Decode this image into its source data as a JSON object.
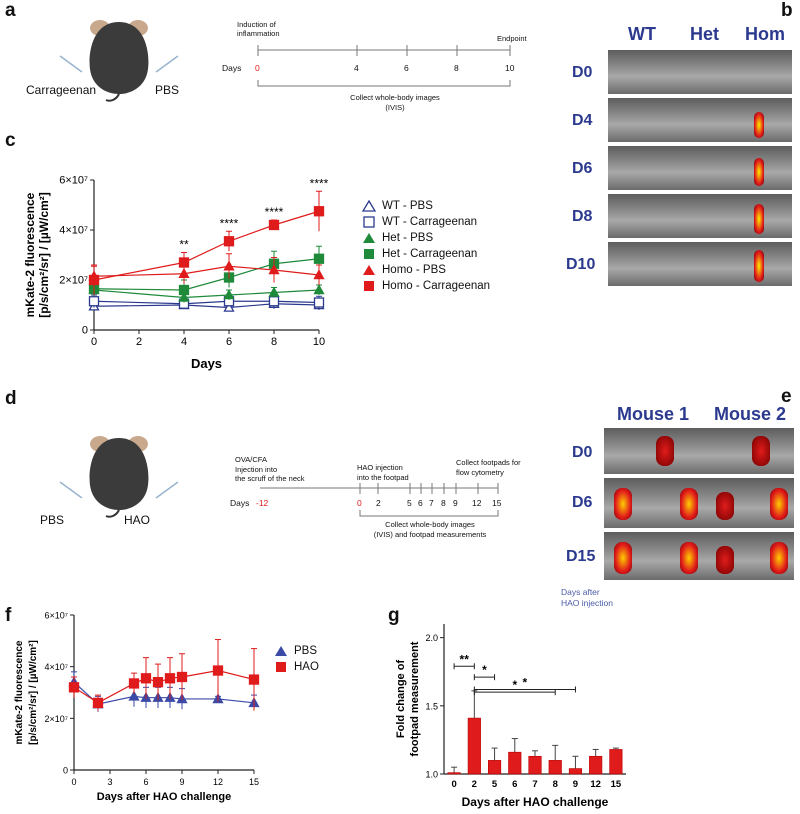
{
  "panels": {
    "a": {
      "label": "a",
      "left_label": "Carrageenan",
      "right_label": "PBS",
      "top_note": "Induction of inflammation",
      "end_note": "Endpoint",
      "days_label": "Days",
      "ticks": [
        "0",
        "4",
        "6",
        "8",
        "10"
      ],
      "bottom_note": "Collect whole-body images",
      "bottom_note2": "(IVIS)"
    },
    "b": {
      "label": "b",
      "columns": [
        "WT",
        "Het",
        "Hom"
      ],
      "rows": [
        "D0",
        "D4",
        "D6",
        "D8",
        "D10"
      ]
    },
    "c": {
      "label": "c"
    },
    "d": {
      "label": "d",
      "left_label": "PBS",
      "right_label": "HAO",
      "note1": "OVA/CFA",
      "note2": "Injection into",
      "note3": "the scruff of the neck",
      "note4": "HAO injection",
      "note5": "into the footpad",
      "note6": "Collect footpads for",
      "note7": "flow cytometry",
      "days_label": "Days",
      "ticks": [
        "-12",
        "0",
        "2",
        "5",
        "6",
        "7",
        "8",
        "9",
        "12",
        "15"
      ],
      "bottom_note": "Collect whole-body images",
      "bottom_note2": "(IVIS) and footpad measurements"
    },
    "e": {
      "label": "e",
      "columns": [
        "Mouse 1",
        "Mouse 2"
      ],
      "rows": [
        "D0",
        "D6",
        "D15"
      ],
      "caption1": "Days after",
      "caption2": "HAO injection"
    },
    "f": {
      "label": "f"
    },
    "g": {
      "label": "g"
    }
  },
  "colors": {
    "wt": "#2b3a8e",
    "het": "#1e8a3a",
    "homo": "#e01b1b",
    "pbs": "#3a4aa6",
    "hao": "#e01b1b",
    "timeline_red": "#e01b1b",
    "bar": "#e01b1b"
  },
  "chart_data": [
    {
      "id": "c",
      "type": "line",
      "title": "",
      "xlabel": "Days",
      "ylabel": "mKate-2 fluorescence",
      "ylabel2": "[p/s/cm²/sr] / [µW/cm²]",
      "x": [
        0,
        4,
        6,
        8,
        10
      ],
      "xlim": [
        0,
        10
      ],
      "xticks": [
        "0",
        "2",
        "4",
        "6",
        "8",
        "10"
      ],
      "ylim": [
        0,
        60000000
      ],
      "yticks": [
        "0",
        "2×10⁷",
        "4×10⁷",
        "6×10⁷"
      ],
      "series": [
        {
          "name": "WT - PBS",
          "values": [
            9500000,
            10000000,
            9000000,
            10500000,
            10000000
          ],
          "err": [
            1500000,
            1500000,
            1500000,
            2000000,
            2000000
          ],
          "marker": "tri-open",
          "color": "#2b3a8e"
        },
        {
          "name": "WT - Carrageenan",
          "values": [
            11500000,
            10500000,
            11500000,
            11500000,
            11000000
          ],
          "err": [
            2500000,
            1500000,
            2000000,
            3000000,
            2500000
          ],
          "marker": "sq-open",
          "color": "#2b3a8e"
        },
        {
          "name": "Het - PBS",
          "values": [
            16000000,
            13000000,
            14000000,
            15000000,
            16000000
          ],
          "err": [
            2000000,
            2000000,
            2000000,
            2000000,
            2000000
          ],
          "marker": "tri",
          "color": "#1e8a3a"
        },
        {
          "name": "Het - Carrageenan",
          "values": [
            16500000,
            16000000,
            21000000,
            26500000,
            28500000
          ],
          "err": [
            3000000,
            4000000,
            4000000,
            5000000,
            5000000
          ],
          "marker": "sq",
          "color": "#1e8a3a"
        },
        {
          "name": "Homo - PBS",
          "values": [
            21500000,
            22500000,
            25500000,
            24000000,
            22000000
          ],
          "err": [
            4000000,
            4000000,
            5000000,
            5000000,
            4000000
          ],
          "marker": "tri",
          "color": "#e01b1b"
        },
        {
          "name": "Homo - Carrageenan",
          "values": [
            20000000,
            27000000,
            35500000,
            42000000,
            47500000
          ],
          "err": [
            6000000,
            4000000,
            4000000,
            2000000,
            8000000
          ],
          "marker": "sq",
          "color": "#e01b1b"
        }
      ],
      "annotations": [
        {
          "x": 4,
          "text": "**"
        },
        {
          "x": 6,
          "text": "****"
        },
        {
          "x": 8,
          "text": "****"
        },
        {
          "x": 10,
          "text": "****"
        }
      ]
    },
    {
      "id": "f",
      "type": "line",
      "xlabel": "Days after HAO challenge",
      "ylabel": "mKate-2 fluorescence",
      "ylabel2": "[p/s/cm²/sr] / [µW/cm²]",
      "x": [
        0,
        2,
        5,
        6,
        7,
        8,
        9,
        12,
        15
      ],
      "xlim": [
        0,
        15
      ],
      "xticks": [
        "0",
        "3",
        "6",
        "9",
        "12",
        "15"
      ],
      "ylim": [
        0,
        60000000
      ],
      "yticks": [
        "0",
        "2×10⁷",
        "4×10⁷",
        "6×10⁷"
      ],
      "series": [
        {
          "name": "PBS",
          "values": [
            34000000,
            25500000,
            28500000,
            28000000,
            28000000,
            28000000,
            27500000,
            27500000,
            26000000
          ],
          "err": [
            4000000,
            3000000,
            4000000,
            4000000,
            4000000,
            4000000,
            4000000,
            1000000,
            3000000
          ],
          "marker": "tri",
          "color": "#3a4aa6"
        },
        {
          "name": "HAO",
          "values": [
            32000000,
            26000000,
            33500000,
            35500000,
            34000000,
            35500000,
            36000000,
            38500000,
            35000000
          ],
          "err": [
            4000000,
            3000000,
            4000000,
            8000000,
            7000000,
            8000000,
            9000000,
            12000000,
            12000000
          ],
          "marker": "sq",
          "color": "#e01b1b"
        }
      ]
    },
    {
      "id": "g",
      "type": "bar",
      "xlabel": "Days after HAO challenge",
      "ylabel": "Fold change of",
      "ylabel2": "footpad measurement",
      "categories": [
        "0",
        "2",
        "5",
        "6",
        "7",
        "8",
        "9",
        "12",
        "15"
      ],
      "values": [
        1.01,
        1.41,
        1.1,
        1.16,
        1.13,
        1.1,
        1.04,
        1.13,
        1.18
      ],
      "err": [
        0.04,
        0.2,
        0.09,
        0.1,
        0.04,
        0.11,
        0.09,
        0.05,
        0.01
      ],
      "ylim": [
        1.0,
        2.1
      ],
      "yticks": [
        "1.0",
        "1.5",
        "2.0"
      ],
      "significance": [
        {
          "from": "0",
          "to": "2",
          "text": "**"
        },
        {
          "from": "2",
          "to": "5",
          "text": "*"
        },
        {
          "from": "2",
          "to": "8",
          "text": "*"
        },
        {
          "from": "2",
          "to": "9",
          "text": "*"
        }
      ]
    }
  ]
}
